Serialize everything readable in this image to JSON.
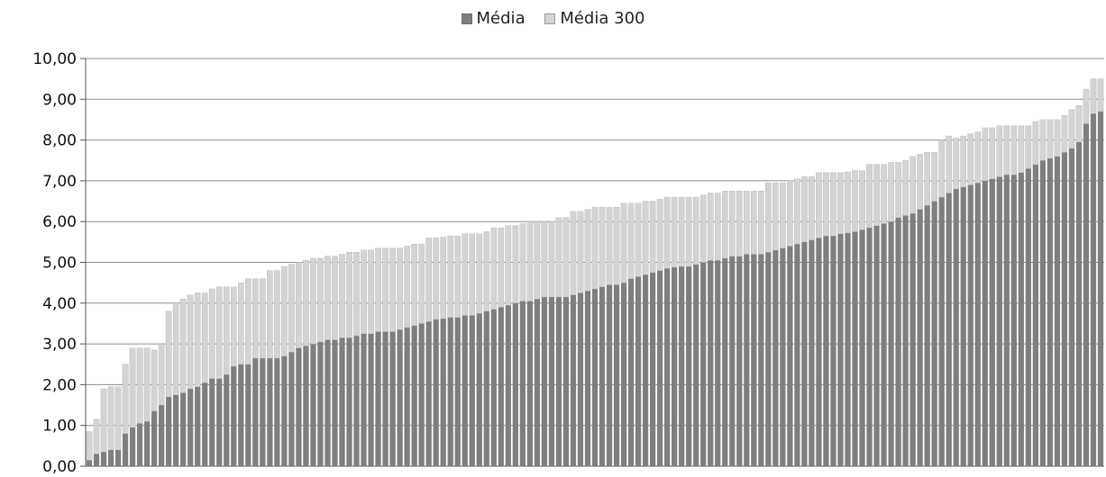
{
  "chart_data": {
    "type": "bar",
    "stacked": true,
    "title": "",
    "xlabel": "",
    "ylabel": "",
    "ylim": [
      0,
      10
    ],
    "yticks": [
      "0,00",
      "1,00",
      "2,00",
      "3,00",
      "4,00",
      "5,00",
      "6,00",
      "7,00",
      "8,00",
      "9,00",
      "10,00"
    ],
    "grid": true,
    "legend_position": "top-center",
    "series": [
      {
        "name": "Média",
        "color": "#7f7f7f",
        "values": [
          0.15,
          0.3,
          0.35,
          0.4,
          0.4,
          0.8,
          0.95,
          1.05,
          1.1,
          1.35,
          1.5,
          1.7,
          1.75,
          1.8,
          1.9,
          1.95,
          2.05,
          2.15,
          2.15,
          2.25,
          2.45,
          2.5,
          2.5,
          2.65,
          2.65,
          2.65,
          2.65,
          2.7,
          2.8,
          2.9,
          2.95,
          3.0,
          3.05,
          3.1,
          3.1,
          3.15,
          3.15,
          3.2,
          3.25,
          3.25,
          3.3,
          3.3,
          3.3,
          3.35,
          3.4,
          3.45,
          3.5,
          3.55,
          3.6,
          3.62,
          3.65,
          3.65,
          3.7,
          3.7,
          3.75,
          3.8,
          3.85,
          3.9,
          3.95,
          4.0,
          4.05,
          4.05,
          4.1,
          4.15,
          4.15,
          4.15,
          4.15,
          4.2,
          4.25,
          4.3,
          4.35,
          4.4,
          4.45,
          4.45,
          4.5,
          4.6,
          4.65,
          4.7,
          4.75,
          4.8,
          4.85,
          4.88,
          4.9,
          4.9,
          4.95,
          5.0,
          5.05,
          5.05,
          5.1,
          5.15,
          5.15,
          5.2,
          5.2,
          5.2,
          5.25,
          5.3,
          5.35,
          5.4,
          5.45,
          5.5,
          5.55,
          5.6,
          5.65,
          5.65,
          5.7,
          5.72,
          5.75,
          5.8,
          5.85,
          5.9,
          5.95,
          6.0,
          6.1,
          6.15,
          6.2,
          6.3,
          6.4,
          6.5,
          6.6,
          6.7,
          6.8,
          6.85,
          6.9,
          6.95,
          7.0,
          7.05,
          7.1,
          7.15,
          7.15,
          7.2,
          7.3,
          7.4,
          7.5,
          7.55,
          7.6,
          7.7,
          7.8,
          7.95,
          8.4,
          8.65,
          8.7
        ]
      },
      {
        "name": "Média 300",
        "color": "#d4d4d4",
        "values": [
          0.7,
          0.85,
          1.55,
          1.55,
          1.55,
          1.7,
          1.95,
          1.85,
          1.8,
          1.5,
          1.5,
          2.1,
          2.25,
          2.3,
          2.3,
          2.3,
          2.2,
          2.2,
          2.25,
          2.15,
          1.95,
          2.0,
          2.1,
          1.95,
          1.95,
          2.15,
          2.15,
          2.2,
          2.15,
          2.1,
          2.1,
          2.1,
          2.05,
          2.05,
          2.05,
          2.05,
          2.1,
          2.05,
          2.05,
          2.05,
          2.05,
          2.05,
          2.05,
          2.0,
          2.0,
          2.0,
          1.95,
          2.05,
          2.0,
          2.0,
          2.0,
          2.0,
          2.0,
          2.0,
          1.95,
          1.95,
          2.0,
          1.95,
          1.95,
          1.9,
          1.9,
          1.95,
          1.9,
          1.85,
          1.85,
          1.95,
          1.95,
          2.05,
          2.0,
          2.0,
          2.0,
          1.95,
          1.9,
          1.9,
          1.95,
          1.85,
          1.8,
          1.8,
          1.75,
          1.75,
          1.75,
          1.72,
          1.7,
          1.7,
          1.65,
          1.65,
          1.65,
          1.65,
          1.65,
          1.6,
          1.6,
          1.55,
          1.55,
          1.55,
          1.7,
          1.65,
          1.6,
          1.6,
          1.6,
          1.6,
          1.55,
          1.6,
          1.55,
          1.55,
          1.5,
          1.5,
          1.5,
          1.45,
          1.55,
          1.5,
          1.45,
          1.45,
          1.35,
          1.35,
          1.4,
          1.35,
          1.3,
          1.2,
          1.4,
          1.4,
          1.25,
          1.25,
          1.25,
          1.25,
          1.3,
          1.25,
          1.25,
          1.2,
          1.2,
          1.15,
          1.05,
          1.05,
          1.0,
          0.95,
          0.9,
          0.9,
          0.95,
          0.9,
          0.85,
          0.85,
          0.8
        ]
      }
    ]
  }
}
